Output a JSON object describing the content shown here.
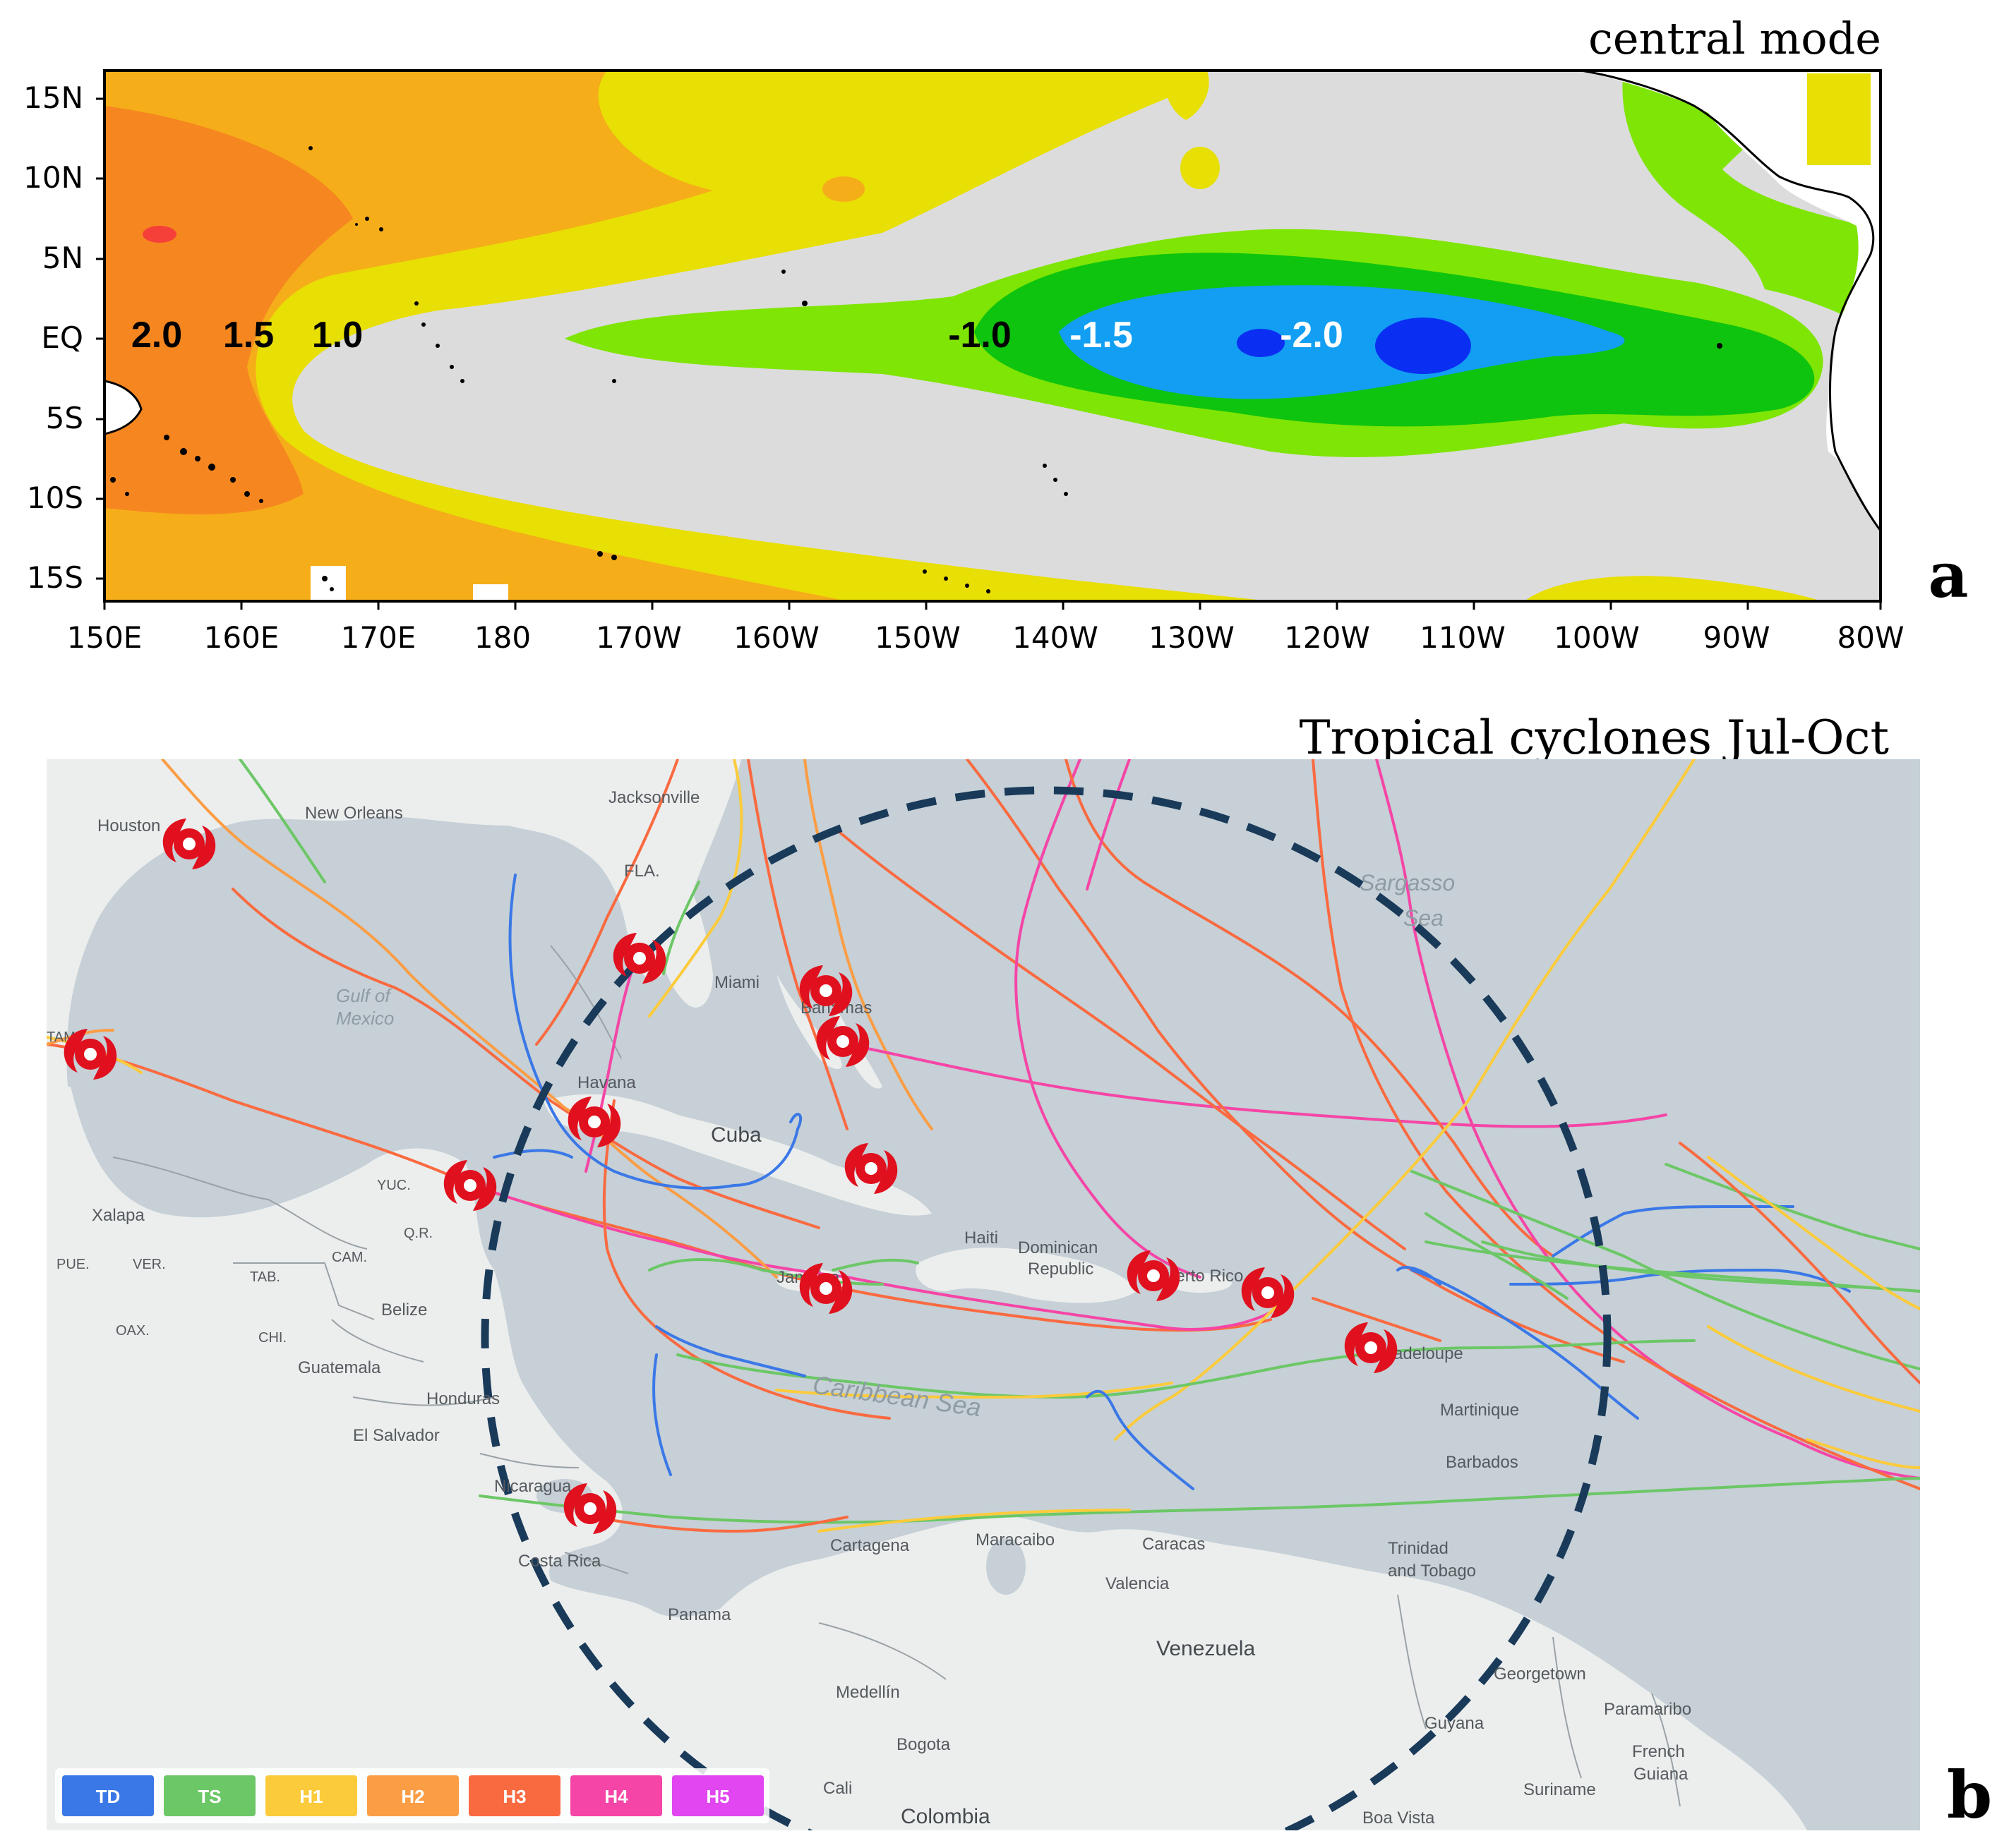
{
  "panel_a": {
    "title": "central mode",
    "panel_letter": "a",
    "lat_ticks": [
      "15N",
      "10N",
      "5N",
      "EQ",
      "5S",
      "10S",
      "15S"
    ],
    "lon_ticks": [
      "150E",
      "160E",
      "170E",
      "180",
      "170W",
      "160W",
      "150W",
      "140W",
      "130W",
      "120W",
      "110W",
      "100W",
      "90W",
      "80W"
    ],
    "contour_labels": [
      {
        "text": "2.0",
        "color": "#000000"
      },
      {
        "text": "1.5",
        "color": "#000000"
      },
      {
        "text": "1.0",
        "color": "#000000"
      },
      {
        "text": "-1.0",
        "color": "#000000"
      },
      {
        "text": "-1.5",
        "color": "#ffffff"
      },
      {
        "text": "-2.0",
        "color": "#ffffff"
      }
    ],
    "colors": {
      "neutral": "#dcdcdc",
      "pos_1": "#e8df04",
      "pos_15": "#f5ad1a",
      "pos_2": "#f6861f",
      "pos_25": "#f5403a",
      "neg_1": "#7fe504",
      "neg_15": "#0ec40e",
      "neg_2": "#129ef2",
      "neg_25": "#0a2ff2"
    }
  },
  "panel_b": {
    "title": "Tropical cyclones  Jul-Oct",
    "panel_letter": "b",
    "map_labels": {
      "houston": "Houston",
      "new_orleans": "New Orleans",
      "jacksonville": "Jacksonville",
      "fla": "FLA.",
      "miami": "Miami",
      "gulf_of": "Gulf of",
      "mexico": "Mexico",
      "havana": "Havana",
      "cuba": "Cuba",
      "haiti": "Haiti",
      "dominican": "Dominican",
      "republic": "Republic",
      "puerto_rico": "Puerto Rico",
      "bahamas": "Bahamas",
      "sargasso": "Sargasso",
      "sea": "Sea",
      "jamaica": "Jamaica",
      "guadeloupe": "Guadeloupe",
      "martinique": "Martinique",
      "barbados": "Barbados",
      "trinidad": "Trinidad",
      "and_tobago": "and Tobago",
      "caribbean_sea": "Caribbean Sea",
      "xalapa": "Xalapa",
      "pue": "PUE.",
      "ver": "VER.",
      "tab": "TAB.",
      "cam": "CAM.",
      "yuc": "YUC.",
      "qr": "Q.R.",
      "oax": "OAX.",
      "chi": "CHI.",
      "belize": "Belize",
      "guatemala": "Guatemala",
      "honduras": "Honduras",
      "el_salvador": "El Salvador",
      "nicaragua": "Nicaragua",
      "costa_rica": "Costa Rica",
      "panama": "Panama",
      "cartagena": "Cartagena",
      "maracaibo": "Maracaibo",
      "caracas": "Caracas",
      "valencia": "Valencia",
      "venezuela": "Venezuela",
      "georgetown": "Georgetown",
      "guyana": "Guyana",
      "paramaribo": "Paramaribo",
      "suriname": "Suriname",
      "french": "French",
      "guiana": "Guiana",
      "medellin": "Medellín",
      "bogota": "Bogota",
      "cali": "Cali",
      "colombia": "Colombia",
      "boa_vista": "Boa Vista",
      "tam": "TAM."
    },
    "legend": [
      {
        "label": "TD",
        "color": "#3b78e7"
      },
      {
        "label": "TS",
        "color": "#6cc766"
      },
      {
        "label": "H1",
        "color": "#fccb3c"
      },
      {
        "label": "H2",
        "color": "#fb9d45"
      },
      {
        "label": "H3",
        "color": "#fa6a40"
      },
      {
        "label": "H4",
        "color": "#f545a6"
      },
      {
        "label": "H5",
        "color": "#e146f0"
      }
    ],
    "cyclone_icon": "hurricane-icon",
    "circle_style": "dashed-navy"
  }
}
